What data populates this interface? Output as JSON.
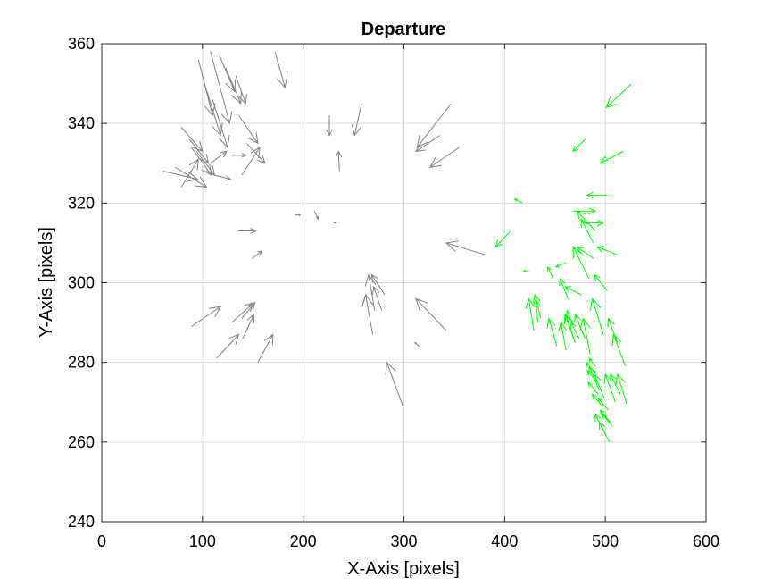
{
  "chart_data": {
    "type": "quiver",
    "title": "Departure",
    "xlabel": "X-Axis [pixels]",
    "ylabel": "Y-Axis [pixels]",
    "xlim": [
      0,
      600
    ],
    "ylim": [
      240,
      360
    ],
    "xticks": [
      0,
      100,
      200,
      300,
      400,
      500,
      600
    ],
    "yticks": [
      240,
      260,
      280,
      300,
      320,
      340,
      360
    ],
    "grid": true,
    "series": [
      {
        "color": "#808080",
        "vectors": [
          [
            108,
            358,
            127,
            340
          ],
          [
            96,
            356,
            110,
            342
          ],
          [
            102,
            350,
            118,
            337
          ],
          [
            110,
            346,
            125,
            334
          ],
          [
            123,
            354,
            138,
            345
          ],
          [
            117,
            357,
            132,
            348
          ],
          [
            133,
            352,
            143,
            345
          ],
          [
            172,
            358,
            182,
            349
          ],
          [
            136,
            342,
            155,
            335
          ],
          [
            79,
            339,
            100,
            333
          ],
          [
            87,
            336,
            106,
            330
          ],
          [
            94,
            333,
            112,
            327
          ],
          [
            61,
            328,
            95,
            326
          ],
          [
            73,
            329,
            104,
            324
          ],
          [
            79,
            324,
            96,
            331
          ],
          [
            89,
            334,
            109,
            327
          ],
          [
            112,
            327,
            128,
            326
          ],
          [
            129,
            332,
            143,
            332
          ],
          [
            144,
            335,
            162,
            330
          ],
          [
            139,
            327,
            157,
            334
          ],
          [
            108,
            330,
            124,
            333
          ],
          [
            226,
            342,
            226,
            337
          ],
          [
            258,
            345,
            251,
            337
          ],
          [
            347,
            345,
            313,
            334
          ],
          [
            336,
            337,
            312,
            333
          ],
          [
            355,
            334,
            326,
            329
          ],
          [
            236,
            328,
            235,
            333
          ],
          [
            135,
            313,
            153,
            313
          ],
          [
            149,
            306,
            159,
            308
          ],
          [
            192,
            317,
            197,
            317
          ],
          [
            211,
            318,
            215,
            316
          ],
          [
            233,
            315,
            231,
            315
          ],
          [
            381,
            307,
            342,
            310
          ],
          [
            89,
            289,
            118,
            294
          ],
          [
            114,
            281,
            136,
            287
          ],
          [
            155,
            280,
            170,
            287
          ],
          [
            129,
            290,
            151,
            295
          ],
          [
            139,
            291,
            152,
            295
          ],
          [
            140,
            286,
            151,
            292
          ],
          [
            281,
            297,
            268,
            302
          ],
          [
            269,
            287,
            262,
            297
          ],
          [
            271,
            293,
            265,
            302
          ],
          [
            278,
            293,
            270,
            299
          ],
          [
            342,
            288,
            312,
            296
          ],
          [
            315,
            284,
            311,
            285
          ],
          [
            299,
            269,
            283,
            280
          ]
        ]
      },
      {
        "color": "#00ff00",
        "vectors": [
          [
            526,
            350,
            501,
            344
          ],
          [
            480,
            336,
            468,
            333
          ],
          [
            518,
            333,
            495,
            330
          ],
          [
            502,
            322,
            482,
            322
          ],
          [
            418,
            320,
            410,
            321
          ],
          [
            406,
            313,
            391,
            309
          ],
          [
            468,
            318,
            490,
            318
          ],
          [
            478,
            315,
            498,
            315
          ],
          [
            490,
            313,
            472,
            318
          ],
          [
            488,
            310,
            476,
            316
          ],
          [
            489,
            306,
            472,
            309
          ],
          [
            512,
            307,
            492,
            309
          ],
          [
            424,
            303,
            419,
            303
          ],
          [
            448,
            301,
            443,
            304
          ],
          [
            463,
            296,
            455,
            301
          ],
          [
            461,
            305,
            451,
            304
          ],
          [
            476,
            297,
            460,
            299
          ],
          [
            484,
            301,
            468,
            309
          ],
          [
            502,
            298,
            489,
            302
          ],
          [
            429,
            288,
            424,
            296
          ],
          [
            433,
            290,
            431,
            296
          ],
          [
            436,
            291,
            430,
            297
          ],
          [
            467,
            290,
            462,
            293
          ],
          [
            470,
            285,
            461,
            292
          ],
          [
            474,
            286,
            466,
            290
          ],
          [
            480,
            286,
            470,
            292
          ],
          [
            485,
            282,
            478,
            291
          ],
          [
            498,
            287,
            487,
            296
          ],
          [
            512,
            285,
            503,
            291
          ],
          [
            520,
            279,
            508,
            287
          ],
          [
            461,
            283,
            456,
            290
          ],
          [
            452,
            284,
            444,
            291
          ],
          [
            470,
            285,
            460,
            292
          ],
          [
            490,
            279,
            484,
            281
          ],
          [
            491,
            277,
            481,
            280
          ],
          [
            492,
            275,
            482,
            278
          ],
          [
            493,
            272,
            483,
            275
          ],
          [
            494,
            273,
            484,
            279
          ],
          [
            497,
            269,
            487,
            272
          ],
          [
            499,
            271,
            489,
            277
          ],
          [
            503,
            268,
            493,
            271
          ],
          [
            505,
            265,
            495,
            268
          ],
          [
            507,
            264,
            497,
            267
          ],
          [
            510,
            270,
            500,
            277
          ],
          [
            515,
            272,
            505,
            277
          ],
          [
            522,
            269,
            512,
            277
          ],
          [
            500,
            262,
            490,
            267
          ],
          [
            504,
            260,
            494,
            265
          ]
        ]
      }
    ]
  }
}
